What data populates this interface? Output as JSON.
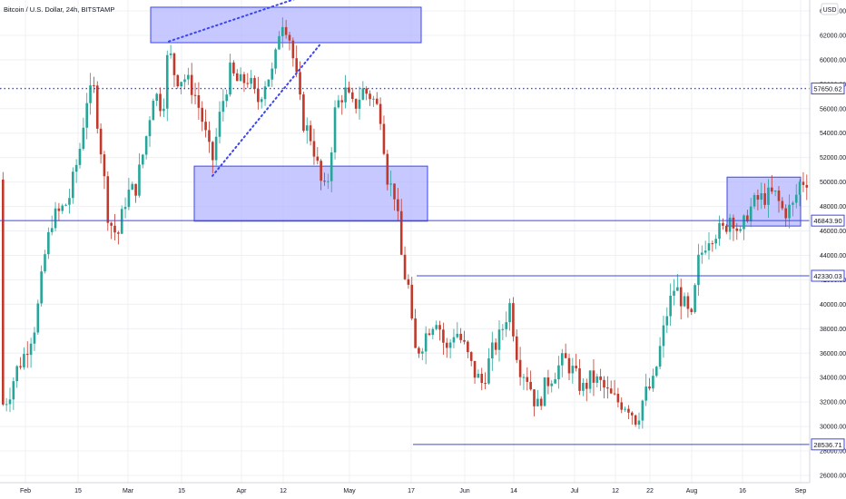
{
  "chart_data": {
    "type": "candlestick",
    "title": "Bitcoin / U.S. Dollar, 24h, BITSTAMP",
    "currency": "USD",
    "y_axis": {
      "range": [
        26000,
        64800
      ],
      "tick_labels": [
        "26000.00",
        "28000.00",
        "30000.00",
        "32000.00",
        "34000.00",
        "36000.00",
        "38000.00",
        "40000.00",
        "42000.00",
        "44000.00",
        "46000.00",
        "48000.00",
        "50000.00",
        "52000.00",
        "54000.00",
        "56000.00",
        "58000.00",
        "60000.00",
        "62000.00",
        "64000.00"
      ]
    },
    "x_axis": {
      "tick_labels": [
        "Feb",
        "15",
        "Mar",
        "15",
        "Apr",
        "12",
        "May",
        "17",
        "Jun",
        "14",
        "Jul",
        "12",
        "22",
        "Aug",
        "16",
        "Sep"
      ]
    },
    "price_levels": [
      {
        "label": "57650.62",
        "value": 57650.62,
        "style": "dotted"
      },
      {
        "label": "46843.90",
        "value": 46843.9,
        "style": "solid"
      },
      {
        "label": "42330.03",
        "value": 42330.03,
        "style": "solid"
      },
      {
        "label": "28536.71",
        "value": 28536.71,
        "style": "solid"
      }
    ],
    "zones": [
      {
        "name": "top-supply-zone",
        "price_low": 61400,
        "price_high": 64300
      },
      {
        "name": "middle-zone",
        "price_low": 46800,
        "price_high": 51300
      },
      {
        "name": "current-range-zone",
        "price_low": 46400,
        "price_high": 50400
      }
    ],
    "trendlines": [
      {
        "name": "upper-wedge-line",
        "from": 61500,
        "to": 65000,
        "style": "dotted"
      },
      {
        "name": "lower-wedge-line",
        "from": 50500,
        "to": 61200,
        "style": "dotted"
      }
    ],
    "colors": {
      "up": "#26a69a",
      "down": "#c0392b",
      "level_line": "#3b46ef",
      "zone_fill": "#b3b6ff",
      "zone_border": "#3b46ef",
      "grid": "#eef0f3"
    }
  }
}
